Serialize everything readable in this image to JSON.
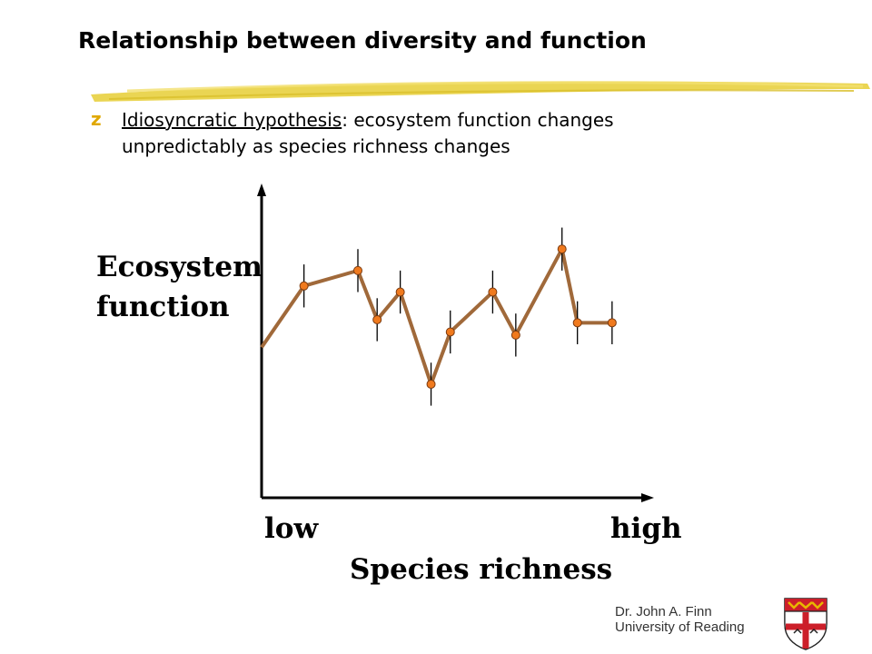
{
  "title": "Relationship between diversity and function",
  "bullet": {
    "glyph": "z",
    "term": "Idiosyncratic hypothesis",
    "line1_rest": ": ecosystem function changes",
    "line2": "unpredictably as species richness changes"
  },
  "chart_data": {
    "type": "line",
    "ylabel_line1": "Ecosystem",
    "ylabel_line2": "function",
    "x_low_label": "low",
    "x_high_label": "high",
    "xlabel": "Species richness",
    "line_color": "#a0693a",
    "point_color": "#f07a1e",
    "start_point": {
      "x": 0,
      "y": 0.49
    },
    "points": [
      {
        "x": 0.11,
        "y": 0.69,
        "err": 0.07
      },
      {
        "x": 0.25,
        "y": 0.74,
        "err": 0.07
      },
      {
        "x": 0.3,
        "y": 0.58,
        "err": 0.07
      },
      {
        "x": 0.36,
        "y": 0.67,
        "err": 0.07
      },
      {
        "x": 0.44,
        "y": 0.37,
        "err": 0.07
      },
      {
        "x": 0.49,
        "y": 0.54,
        "err": 0.07
      },
      {
        "x": 0.6,
        "y": 0.67,
        "err": 0.07
      },
      {
        "x": 0.66,
        "y": 0.53,
        "err": 0.07
      },
      {
        "x": 0.78,
        "y": 0.81,
        "err": 0.07
      },
      {
        "x": 0.82,
        "y": 0.57,
        "err": 0.07
      },
      {
        "x": 0.91,
        "y": 0.57,
        "err": 0.07
      }
    ],
    "xlim": [
      0,
      1
    ],
    "ylim": [
      0,
      1
    ]
  },
  "footer": {
    "author": "Dr. John A. Finn",
    "institution": "University of Reading"
  },
  "colors": {
    "brush": "#e8d040",
    "bullet": "#e0a800",
    "crest_red": "#cc1f2a",
    "crest_gold": "#e8b800"
  }
}
